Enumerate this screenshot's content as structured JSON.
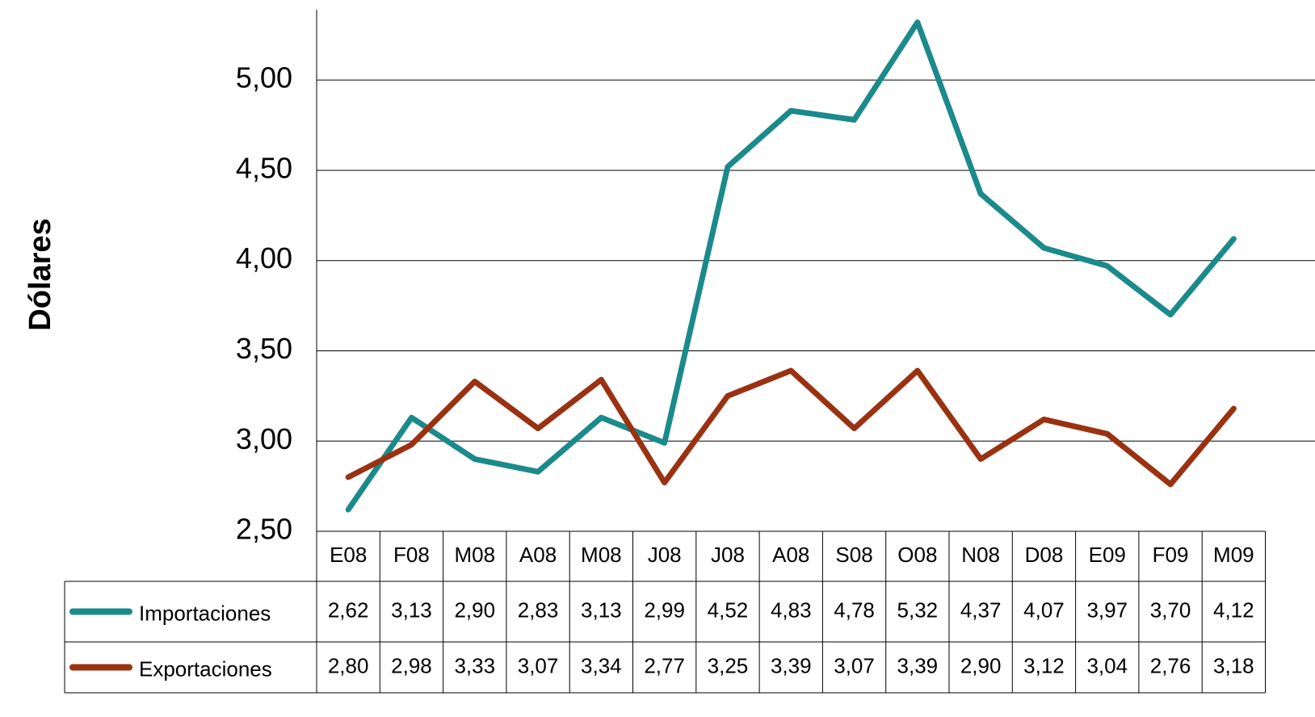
{
  "chart_data": {
    "type": "line",
    "y_label": "Dólares",
    "categories": [
      "E08",
      "F08",
      "M08",
      "A08",
      "M08",
      "J08",
      "J08",
      "A08",
      "S08",
      "O08",
      "N08",
      "D08",
      "E09",
      "F09",
      "M09"
    ],
    "series": [
      {
        "name": "Importaciones",
        "color": "#1b8a8a",
        "values": [
          2.62,
          3.13,
          2.9,
          2.83,
          3.13,
          2.99,
          4.52,
          4.83,
          4.78,
          5.32,
          4.37,
          4.07,
          3.97,
          3.7,
          4.12
        ],
        "value_labels": [
          "2,62",
          "3,13",
          "2,90",
          "2,83",
          "3,13",
          "2,99",
          "4,52",
          "4,83",
          "4,78",
          "5,32",
          "4,37",
          "4,07",
          "3,97",
          "3,70",
          "4,12"
        ]
      },
      {
        "name": "Exportaciones",
        "color": "#9a3211",
        "values": [
          2.8,
          2.98,
          3.33,
          3.07,
          3.34,
          2.77,
          3.25,
          3.39,
          3.07,
          3.39,
          2.9,
          3.12,
          3.04,
          2.76,
          3.18
        ],
        "value_labels": [
          "2,80",
          "2,98",
          "3,33",
          "3,07",
          "3,34",
          "2,77",
          "3,25",
          "3,39",
          "3,07",
          "3,39",
          "2,90",
          "3,12",
          "3,04",
          "2,76",
          "3,18"
        ]
      }
    ],
    "ylim": [
      2.5,
      5.39
    ],
    "yticks": [
      {
        "value": 2.5,
        "label": "2,50"
      },
      {
        "value": 3,
        "label": "3,00"
      },
      {
        "value": 3.5,
        "label": "3,50"
      },
      {
        "value": 4,
        "label": "4,00"
      },
      {
        "value": 4.5,
        "label": "4,50"
      },
      {
        "value": 5,
        "label": "5,00"
      }
    ],
    "grid": true
  }
}
